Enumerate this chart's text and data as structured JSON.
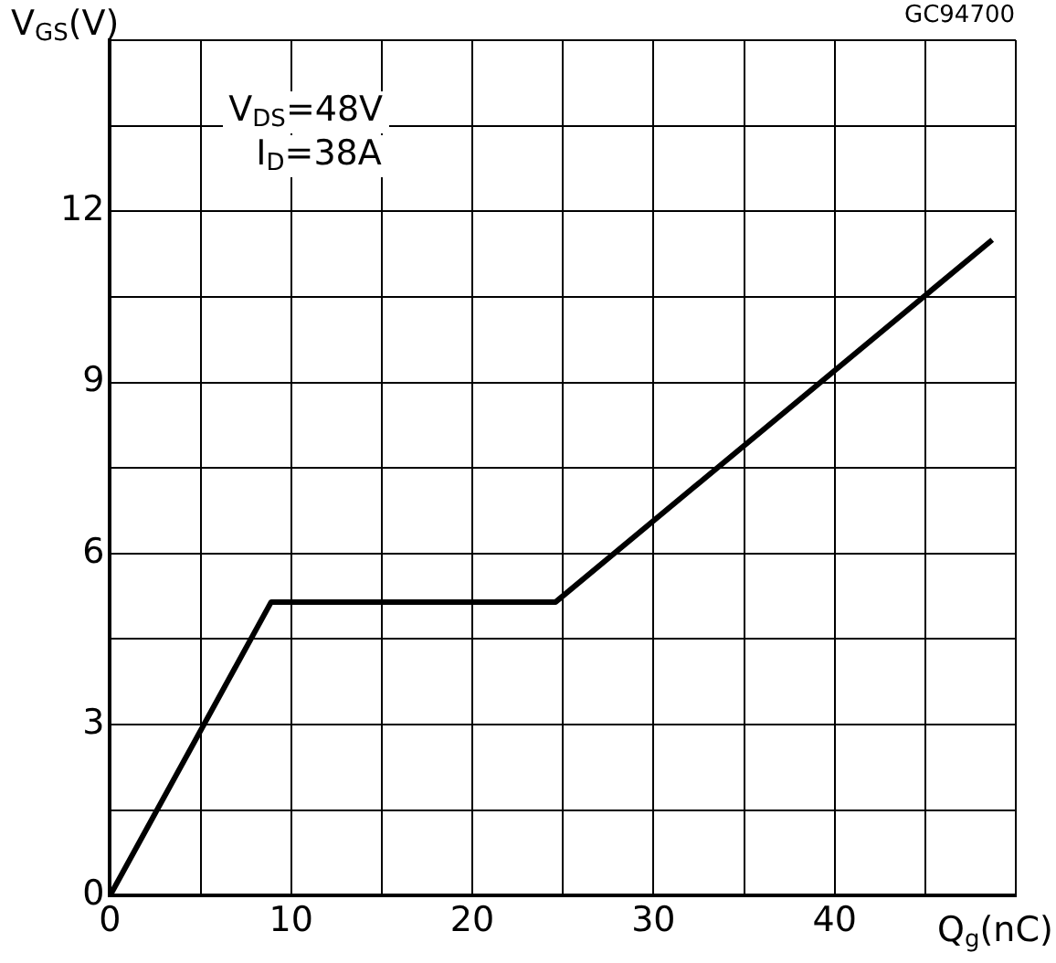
{
  "chart_data": {
    "type": "line",
    "xlabel": "Q$_{g}$(nC)",
    "ylabel": "V$_{GS}$(V)",
    "annotations": [
      "V$_{DS}$=48V",
      "I$_{D}$=38A",
      "GC94700"
    ],
    "x": [
      0,
      8.9,
      24.6,
      48.7
    ],
    "series": [
      {
        "color": "#000000",
        "values": [
          0,
          5.15,
          5.15,
          11.5
        ]
      }
    ],
    "xlim": [
      0,
      50
    ],
    "xticks": [
      0,
      {
        "value": 5,
        "label": null
      },
      10,
      {
        "value": 15,
        "label": null
      },
      20,
      {
        "value": 25,
        "label": null
      },
      30,
      {
        "value": 35,
        "label": null
      },
      40,
      {
        "value": 45,
        "label": null
      },
      {
        "value": 50,
        "label": null
      }
    ],
    "ylim": [
      0,
      15
    ],
    "yticks": [
      0,
      {
        "value": 1.5,
        "label": null
      },
      3,
      {
        "value": 4.5,
        "label": null
      },
      6,
      {
        "value": 7.5,
        "label": null
      },
      9,
      {
        "value": 10.5,
        "label": null
      },
      12,
      {
        "value": 13.5,
        "label": null
      },
      {
        "value": 15,
        "label": null
      }
    ],
    "grid": true,
    "legend": false,
    "marker": "none",
    "line_style": "solid"
  }
}
